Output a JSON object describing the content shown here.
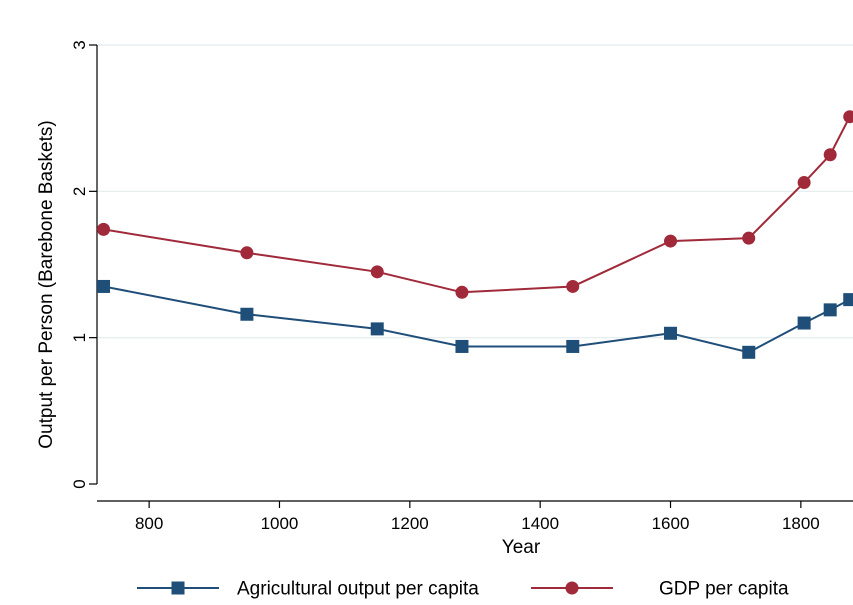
{
  "chart_data": {
    "type": "line",
    "title": "",
    "xlabel": "Year",
    "ylabel": "Output per Person (Barebone Baskets)",
    "xlim": [
      720,
      1880
    ],
    "ylim": [
      0,
      3
    ],
    "xticks": [
      800,
      1000,
      1200,
      1400,
      1600,
      1800
    ],
    "yticks": [
      0,
      1,
      2,
      3
    ],
    "xtick_labels": [
      "800",
      "1000",
      "1200",
      "1400",
      "1600",
      "1800"
    ],
    "ytick_labels": [
      "0",
      "1",
      "2",
      "3"
    ],
    "grid": true,
    "legend_position": "bottom",
    "series": [
      {
        "name": "Agricultural output per capita",
        "color": "#1f4e79",
        "marker": "square",
        "x": [
          730,
          950,
          1150,
          1280,
          1450,
          1600,
          1720,
          1805,
          1845,
          1875
        ],
        "y": [
          1.35,
          1.16,
          1.06,
          0.94,
          0.94,
          1.03,
          0.9,
          1.1,
          1.19,
          1.26
        ]
      },
      {
        "name": "GDP per capita",
        "color": "#a02a3a",
        "marker": "circle",
        "x": [
          730,
          950,
          1150,
          1280,
          1450,
          1600,
          1720,
          1805,
          1845,
          1875
        ],
        "y": [
          1.74,
          1.58,
          1.45,
          1.31,
          1.35,
          1.66,
          1.68,
          2.06,
          2.25,
          2.51
        ]
      }
    ]
  }
}
